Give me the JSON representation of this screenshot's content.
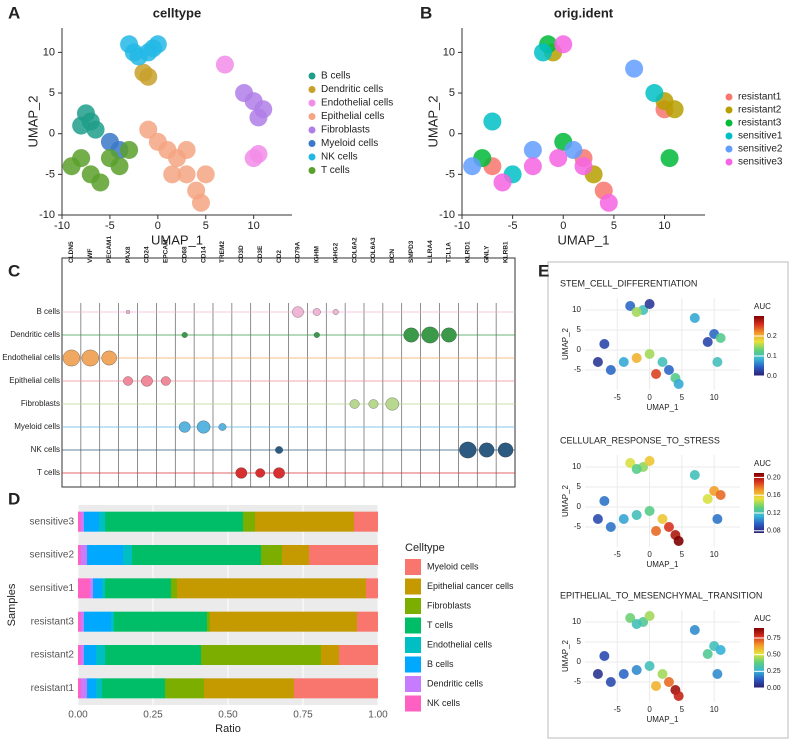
{
  "chart_data": [
    {
      "type": "scatter",
      "panel": "A",
      "title": "celltype",
      "x_label": "UMAP_1",
      "y_label": "UMAP_2",
      "xlim": [
        -10,
        14
      ],
      "ylim": [
        -10,
        13
      ],
      "xticks": [
        -10,
        -5,
        0,
        5,
        10
      ],
      "yticks": [
        -10,
        -5,
        0,
        5,
        10
      ],
      "grid": false,
      "series": [
        {
          "name": "B cells",
          "color": "#1f9e89",
          "x": [
            -7.5,
            -7,
            -6.5,
            -8
          ],
          "values": [
            2.5,
            1.5,
            0.5,
            1
          ]
        },
        {
          "name": "Dendritic cells",
          "color": "#c8a02a",
          "x": [
            -1.5,
            -1
          ],
          "values": [
            7.5,
            7
          ]
        },
        {
          "name": "Endothelial cells",
          "color": "#f28ce9",
          "x": [
            7,
            10.5,
            10
          ],
          "values": [
            8.5,
            -2.5,
            -3
          ]
        },
        {
          "name": "Epithelial cells",
          "color": "#f4a582",
          "x": [
            0,
            1,
            2,
            3,
            3,
            4,
            4.5,
            5,
            -1,
            1.5
          ],
          "values": [
            -1,
            -2,
            -3,
            -2,
            -5,
            -7,
            -8.5,
            -5,
            0.5,
            -5
          ]
        },
        {
          "name": "Fibroblasts",
          "color": "#b07ee8",
          "x": [
            9,
            10,
            11,
            10.5
          ],
          "values": [
            5,
            4,
            3,
            2
          ]
        },
        {
          "name": "Myeloid cells",
          "color": "#3a78c8",
          "x": [
            -5,
            -4
          ],
          "values": [
            -1,
            -2
          ]
        },
        {
          "name": "NK cells",
          "color": "#22b8e6",
          "x": [
            -3,
            -1,
            0,
            -2,
            -0.5,
            -2.5
          ],
          "values": [
            11,
            10,
            11,
            9.5,
            10.5,
            10
          ]
        },
        {
          "name": "T cells",
          "color": "#5aa02c",
          "x": [
            -9,
            -7,
            -5,
            -3,
            -6,
            -8,
            -4
          ],
          "values": [
            -4,
            -5,
            -3,
            -2,
            -6,
            -3,
            -4
          ]
        }
      ]
    },
    {
      "type": "scatter",
      "panel": "B",
      "title": "orig.ident",
      "x_label": "UMAP_1",
      "y_label": "UMAP_2",
      "xlim": [
        -10,
        14
      ],
      "ylim": [
        -10,
        13
      ],
      "xticks": [
        -10,
        -5,
        0,
        5,
        10
      ],
      "yticks": [
        -10,
        -5,
        0,
        5,
        10
      ],
      "grid": false,
      "series": [
        {
          "name": "resistant1",
          "color": "#f8766d",
          "x": [
            -7,
            2,
            4,
            10
          ],
          "values": [
            -4,
            -3,
            -7,
            3
          ]
        },
        {
          "name": "resistant2",
          "color": "#b79f00",
          "x": [
            10,
            11,
            -1,
            3
          ],
          "values": [
            4,
            3,
            10,
            -5
          ]
        },
        {
          "name": "resistant3",
          "color": "#00ba38",
          "x": [
            -8,
            -1.5,
            0,
            10.5
          ],
          "values": [
            -3,
            11,
            -1,
            -3
          ]
        },
        {
          "name": "sensitive1",
          "color": "#00bfc4",
          "x": [
            -7,
            -5,
            -2,
            9
          ],
          "values": [
            1.5,
            -5,
            10,
            5
          ]
        },
        {
          "name": "sensitive2",
          "color": "#619cff",
          "x": [
            -9,
            -3,
            1,
            7
          ],
          "values": [
            -4,
            -2,
            -2,
            8
          ]
        },
        {
          "name": "sensitive3",
          "color": "#f564e3",
          "x": [
            -6,
            -3,
            0,
            2,
            4.5,
            -0.5
          ],
          "values": [
            -6,
            -4,
            11,
            -4,
            -8.5,
            -3
          ]
        }
      ]
    },
    {
      "type": "violin",
      "panel": "C",
      "genes": [
        "CLDN5",
        "VWF",
        "PECAM1",
        "PAX8",
        "CD24",
        "EPCAM",
        "CD68",
        "CD14",
        "TREM2",
        "CD3D",
        "CD3E",
        "CD2",
        "CD79A",
        "IGHM",
        "IGHG2",
        "COL6A2",
        "COL6A3",
        "DCN",
        "SMPD3",
        "LILRA4",
        "TCL1A",
        "KLRD1",
        "GNLY",
        "KLRB1"
      ],
      "series": [
        {
          "name": "B cells",
          "color": "#f0b6d6",
          "values": [
            0,
            0,
            0,
            0.2,
            0,
            0,
            0,
            0,
            0,
            0,
            0,
            0,
            0.6,
            0.4,
            0.3,
            0,
            0,
            0,
            0,
            0,
            0,
            0,
            0,
            0
          ]
        },
        {
          "name": "Dendritic cells",
          "color": "#3a9a4a",
          "values": [
            0,
            0,
            0,
            0,
            0,
            0,
            0.3,
            0,
            0,
            0,
            0,
            0,
            0,
            0.3,
            0,
            0,
            0,
            0,
            0.8,
            0.9,
            0.8,
            0,
            0,
            0
          ]
        },
        {
          "name": "Endothelial cells",
          "color": "#f0a860",
          "values": [
            0.9,
            0.9,
            0.8,
            0,
            0,
            0,
            0,
            0,
            0,
            0,
            0,
            0,
            0,
            0,
            0,
            0,
            0,
            0,
            0,
            0,
            0,
            0,
            0,
            0
          ]
        },
        {
          "name": "Epithelial cells",
          "color": "#f08a9a",
          "values": [
            0,
            0,
            0,
            0.5,
            0.6,
            0.5,
            0,
            0,
            0,
            0,
            0,
            0,
            0,
            0,
            0,
            0,
            0,
            0,
            0,
            0,
            0,
            0,
            0,
            0
          ]
        },
        {
          "name": "Fibroblasts",
          "color": "#b8d890",
          "values": [
            0,
            0,
            0,
            0,
            0,
            0,
            0,
            0,
            0,
            0,
            0,
            0,
            0,
            0,
            0,
            0.5,
            0.5,
            0.7,
            0,
            0,
            0,
            0,
            0,
            0
          ]
        },
        {
          "name": "Myeloid cells",
          "color": "#5ab4e0",
          "values": [
            0,
            0,
            0,
            0,
            0,
            0,
            0.6,
            0.7,
            0.4,
            0,
            0,
            0,
            0,
            0,
            0,
            0,
            0,
            0,
            0,
            0,
            0,
            0,
            0,
            0
          ]
        },
        {
          "name": "NK cells",
          "color": "#2c5a80",
          "values": [
            0,
            0,
            0,
            0,
            0,
            0,
            0,
            0,
            0,
            0,
            0,
            0.4,
            0,
            0,
            0,
            0,
            0,
            0,
            0,
            0,
            0,
            0.9,
            0.8,
            0.8
          ]
        },
        {
          "name": "T cells",
          "color": "#d73030",
          "values": [
            0,
            0,
            0,
            0,
            0,
            0,
            0,
            0,
            0,
            0.6,
            0.5,
            0.6,
            0,
            0,
            0,
            0,
            0,
            0,
            0,
            0,
            0,
            0,
            0,
            0
          ]
        }
      ]
    },
    {
      "type": "stackedbar",
      "panel": "D",
      "x_label": "Ratio",
      "y_label": "Samples",
      "legend_title": "Celltype",
      "categories": [
        "resistant1",
        "resistant2",
        "resistant3",
        "sensitive1",
        "sensitive2",
        "sensitive3"
      ],
      "xlim": [
        0,
        1
      ],
      "xticks": [
        {
          "value": 0,
          "label": "0.00"
        },
        {
          "value": 0.25,
          "label": "0.25"
        },
        {
          "value": 0.5,
          "label": "0.50"
        },
        {
          "value": 0.75,
          "label": "0.75"
        },
        {
          "value": 1,
          "label": "1.00"
        }
      ],
      "series": [
        {
          "name": "Myeloid cells",
          "color": "#f8766d",
          "values": [
            0.28,
            0.13,
            0.07,
            0.04,
            0.23,
            0.08
          ]
        },
        {
          "name": "Epithelial cancer cells",
          "color": "#c49a00",
          "values": [
            0.3,
            0.06,
            0.49,
            0.63,
            0.09,
            0.33
          ]
        },
        {
          "name": "Fibroblasts",
          "color": "#7cae00",
          "values": [
            0.13,
            0.4,
            0.01,
            0.02,
            0.07,
            0.04
          ]
        },
        {
          "name": "T cells",
          "color": "#00be67",
          "values": [
            0.21,
            0.32,
            0.31,
            0.22,
            0.43,
            0.46
          ]
        },
        {
          "name": "Endothelial cells",
          "color": "#00bfc4",
          "values": [
            0.02,
            0.03,
            0.01,
            0.01,
            0.03,
            0.02
          ]
        },
        {
          "name": "B cells",
          "color": "#00a9ff",
          "values": [
            0.03,
            0.04,
            0.09,
            0.03,
            0.12,
            0.05
          ]
        },
        {
          "name": "Dendritic cells",
          "color": "#c77cff",
          "values": [
            0.02,
            0.01,
            0.01,
            0.01,
            0.02,
            0.01
          ]
        },
        {
          "name": "NK cells",
          "color": "#ff61c3",
          "values": [
            0.01,
            0.01,
            0.01,
            0.04,
            0.01,
            0.01
          ]
        }
      ]
    },
    {
      "type": "feature",
      "panel": "E",
      "title": "STEM_CELL_DIFFERENTIATION",
      "x_label": "UMAP_1",
      "y_label": "UMAP_2",
      "xlim": [
        -10,
        14
      ],
      "ylim": [
        -10,
        13
      ],
      "xticks": [
        -5,
        0,
        5,
        10
      ],
      "yticks": [
        -5,
        0,
        5,
        10
      ],
      "grid": true,
      "colorbar_title": "AUC",
      "colorbar_lim": [
        0,
        0.3
      ],
      "colorbar_ticks": [
        {
          "value": 0,
          "label": "0.0"
        },
        {
          "value": 0.1,
          "label": "0.1"
        },
        {
          "value": 0.2,
          "label": "0.2"
        }
      ],
      "x": [
        -3,
        -1,
        0,
        -2,
        7,
        10,
        11,
        9,
        10.5,
        -7,
        -8,
        -6,
        -4,
        -2,
        0,
        2,
        3,
        4,
        4.5,
        1
      ],
      "values": [
        11,
        10,
        11.5,
        9.5,
        8,
        4,
        3,
        2,
        -3,
        1.5,
        -3,
        -5,
        -3,
        -2,
        -1,
        -3,
        -5,
        -7,
        -8.5,
        -6
      ],
      "auc": [
        0.05,
        0.1,
        0.02,
        0.15,
        0.08,
        0.05,
        0.12,
        0.03,
        0.1,
        0.03,
        0.02,
        0.05,
        0.08,
        0.2,
        0.15,
        0.1,
        0.05,
        0.12,
        0.08,
        0.25
      ]
    },
    {
      "type": "feature",
      "title": "CELLULAR_RESPONSE_TO_STRESS",
      "x_label": "UMAP_1",
      "y_label": "UMAP_2",
      "xlim": [
        -10,
        14
      ],
      "ylim": [
        -10,
        13
      ],
      "xticks": [
        -5,
        0,
        5,
        10
      ],
      "yticks": [
        -5,
        0,
        5,
        10
      ],
      "grid": true,
      "colorbar_title": "AUC",
      "colorbar_lim": [
        0.075,
        0.21
      ],
      "colorbar_ticks": [
        0.08,
        0.12,
        0.16,
        {
          "value": 0.2,
          "label": "0.20"
        }
      ],
      "x": [
        -3,
        -1,
        0,
        -2,
        7,
        10,
        11,
        9,
        10.5,
        -7,
        -8,
        -6,
        -4,
        -2,
        0,
        2,
        3,
        4,
        4.5,
        1
      ],
      "values": [
        11,
        10,
        11.5,
        9.5,
        8,
        4,
        3,
        2,
        -3,
        1.5,
        -3,
        -5,
        -3,
        -2,
        -1,
        -3,
        -5,
        -7,
        -8.5,
        -6
      ],
      "auc": [
        0.15,
        0.14,
        0.16,
        0.13,
        0.12,
        0.17,
        0.18,
        0.15,
        0.1,
        0.1,
        0.09,
        0.1,
        0.11,
        0.12,
        0.13,
        0.16,
        0.19,
        0.2,
        0.21,
        0.18
      ]
    },
    {
      "type": "feature",
      "title": "EPITHELIAL_TO_MESENCHYMAL_TRANSITION",
      "x_label": "UMAP_1",
      "y_label": "UMAP_2",
      "xlim": [
        -10,
        14
      ],
      "ylim": [
        -10,
        13
      ],
      "xticks": [
        -5,
        0,
        5,
        10
      ],
      "yticks": [
        -5,
        0,
        5,
        10
      ],
      "grid": true,
      "colorbar_title": "AUC",
      "colorbar_lim": [
        0,
        0.9
      ],
      "colorbar_ticks": [
        {
          "value": 0,
          "label": "0.00"
        },
        0.25,
        {
          "value": 0.5,
          "label": "0.50"
        },
        0.75
      ],
      "x": [
        -3,
        -1,
        0,
        -2,
        7,
        10,
        11,
        9,
        10.5,
        -7,
        -8,
        -6,
        -4,
        -2,
        0,
        2,
        3,
        4,
        4.5,
        1
      ],
      "values": [
        11,
        10,
        11.5,
        9.5,
        8,
        4,
        3,
        2,
        -3,
        1.5,
        -3,
        -5,
        -3,
        -2,
        -1,
        -3,
        -5,
        -7,
        -8.5,
        -6
      ],
      "auc": [
        0.4,
        0.35,
        0.45,
        0.3,
        0.2,
        0.3,
        0.25,
        0.35,
        0.2,
        0.1,
        0.05,
        0.1,
        0.15,
        0.2,
        0.3,
        0.45,
        0.7,
        0.85,
        0.8,
        0.6
      ]
    }
  ]
}
